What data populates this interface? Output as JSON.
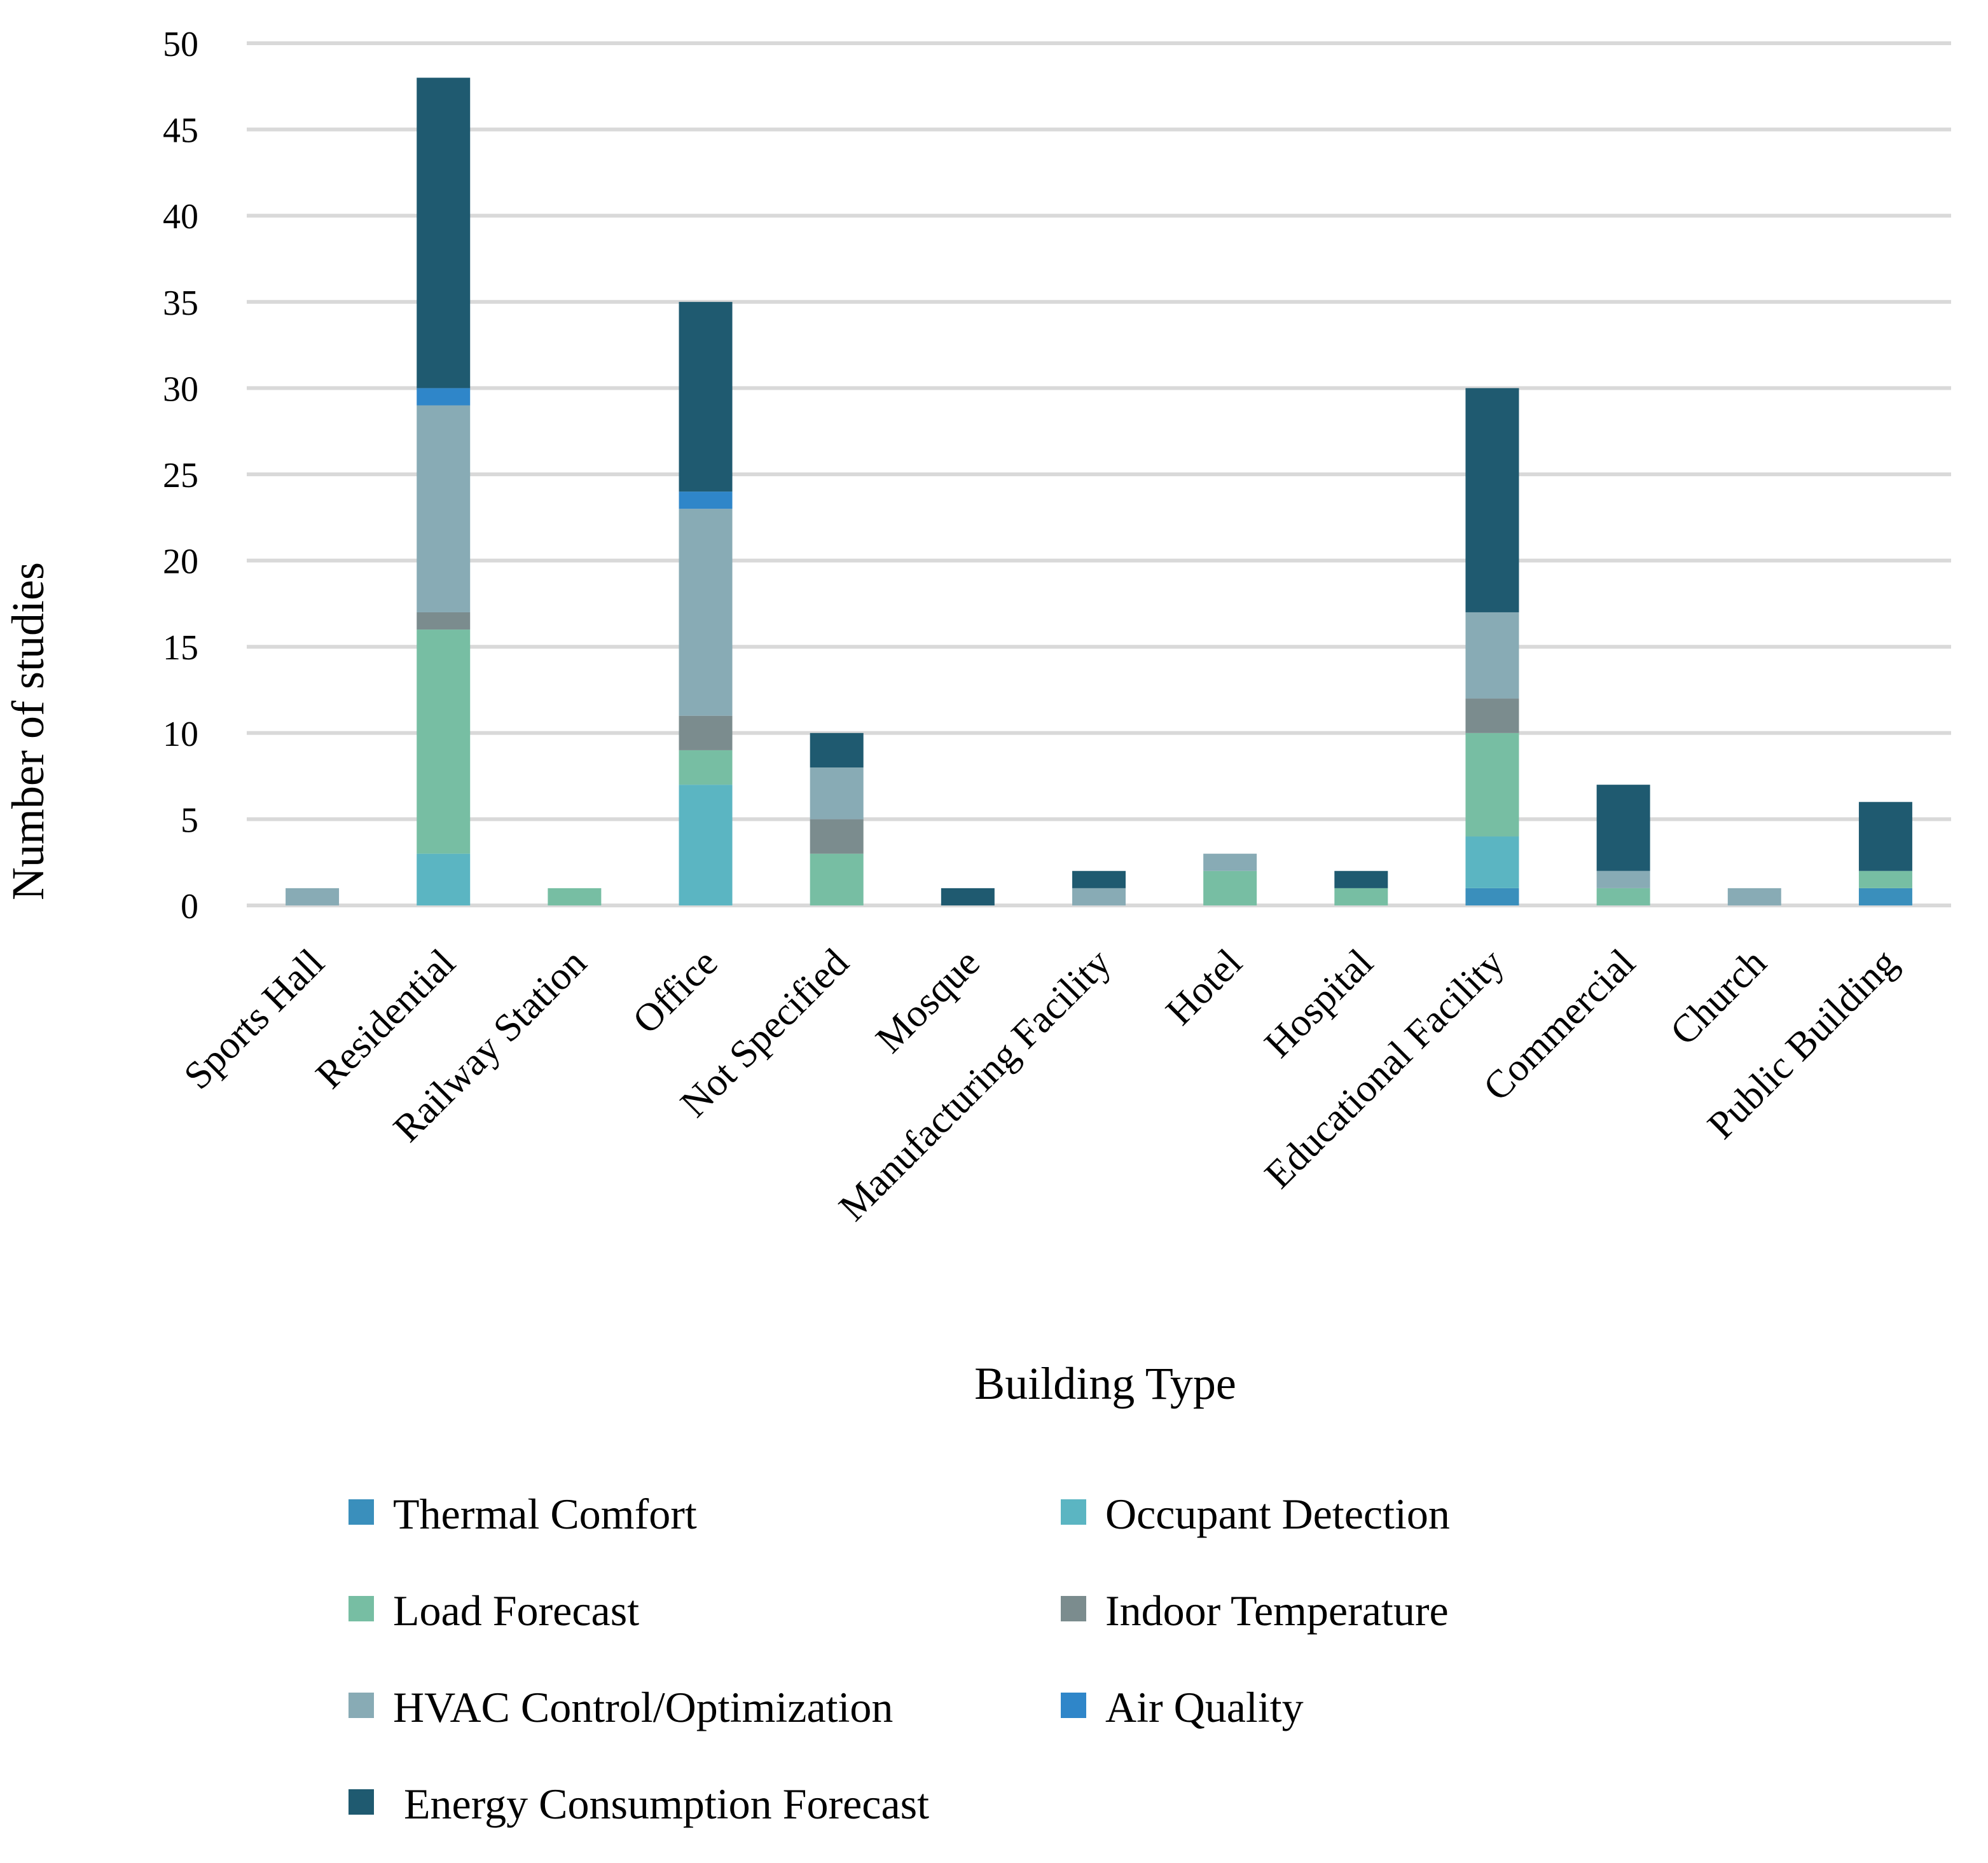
{
  "chart_data": {
    "type": "bar",
    "stacked": true,
    "title": "",
    "xlabel": "Building Type",
    "ylabel": "Number of studies",
    "ylim": [
      0,
      50
    ],
    "yticks": [
      0,
      5,
      10,
      15,
      20,
      25,
      30,
      35,
      40,
      45,
      50
    ],
    "grid": true,
    "legend_position": "bottom",
    "categories": [
      "Sports Hall",
      "Residential",
      "Railway Station",
      "Office",
      "Not Specified",
      "Mosque",
      "Manufacturing Facility",
      "Hotel",
      "Hospital",
      "Educational Facility",
      "Commercial",
      "Church",
      "Public Building"
    ],
    "series": [
      {
        "name": "Thermal Comfort",
        "color": "#3a8fbc",
        "values": [
          0,
          0,
          0,
          0,
          0,
          0,
          0,
          0,
          0,
          1,
          0,
          0,
          1
        ]
      },
      {
        "name": "Occupant Detection",
        "color": "#5bb5c2",
        "values": [
          0,
          3,
          0,
          7,
          0,
          0,
          0,
          0,
          0,
          3,
          0,
          0,
          0
        ]
      },
      {
        "name": "Load Forecast",
        "color": "#77bea3",
        "values": [
          0,
          13,
          1,
          2,
          3,
          0,
          0,
          2,
          1,
          6,
          1,
          0,
          1
        ]
      },
      {
        "name": "Indoor Temperature",
        "color": "#7b8c8e",
        "values": [
          0,
          1,
          0,
          2,
          2,
          0,
          0,
          0,
          0,
          2,
          0,
          0,
          0
        ]
      },
      {
        "name": "HVAC Control/Optimization",
        "color": "#88abb5",
        "values": [
          1,
          12,
          0,
          12,
          3,
          0,
          1,
          1,
          0,
          5,
          1,
          1,
          0
        ]
      },
      {
        "name": "Air Quality",
        "color": "#2f86c9",
        "values": [
          0,
          1,
          0,
          1,
          0,
          0,
          0,
          0,
          0,
          0,
          0,
          0,
          0
        ]
      },
      {
        "name": " Energy Consumption Forecast",
        "color": "#1f5a70",
        "values": [
          0,
          18,
          0,
          11,
          2,
          1,
          1,
          0,
          1,
          13,
          5,
          0,
          4
        ]
      }
    ]
  }
}
